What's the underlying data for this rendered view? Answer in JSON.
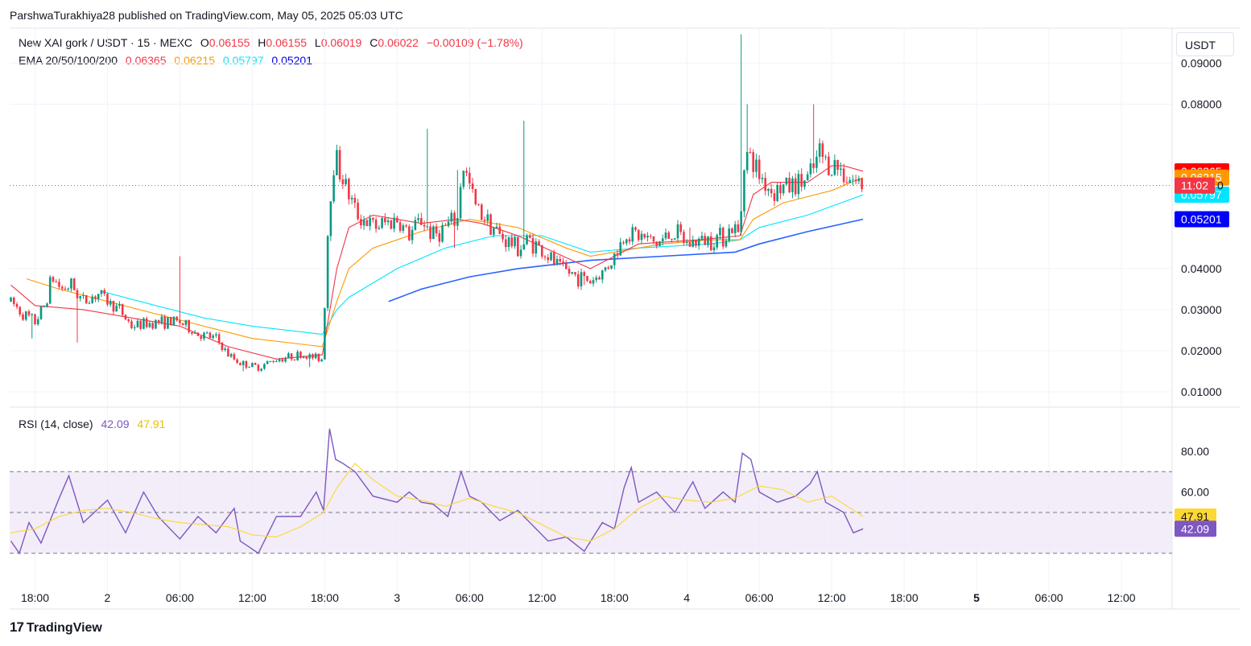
{
  "header": {
    "author": "ParshwaTurakhiya28",
    "published_text": "published on TradingView.com, May 05, 2025 05:03 UTC"
  },
  "legend": {
    "symbol": "New XAI gork / USDT · 15 · MEXC",
    "open_label": "O",
    "open": "0.06155",
    "high_label": "H",
    "high": "0.06155",
    "low_label": "L",
    "low": "0.06019",
    "close_label": "C",
    "close": "0.06022",
    "change": "−0.00109 (−1.78%)"
  },
  "ema_legend": {
    "label": "EMA 20/50/100/200",
    "v20": "0.06365",
    "v50": "0.06215",
    "v100": "0.05797",
    "v200": "0.05201"
  },
  "rsi_legend": {
    "label": "RSI (14, close)",
    "rsi": "42.09",
    "ma": "47.91"
  },
  "currency_button": "USDT",
  "footer": {
    "brand": "TradingView",
    "logo_glyph": "17"
  },
  "colors": {
    "up": "#089981",
    "down": "#f23645",
    "ema20": "#f23645",
    "ema50": "#ff9800",
    "ema100": "#00e5ff",
    "ema200": "#2962ff",
    "rsi": "#7e57c2",
    "rsi_ma": "#fdd835",
    "rsi_band": "#ede7f6"
  },
  "chart_data": [
    {
      "type": "candlestick",
      "title": "New XAI gork / USDT · 15 · MEXC",
      "y_ticks": [
        "0.09000",
        "0.08000",
        "0.04000",
        "0.03000",
        "0.02000",
        "0.01000"
      ],
      "ylim": [
        0.0065,
        0.0985
      ],
      "x_ticks": [
        "18:00",
        "2",
        "06:00",
        "12:00",
        "18:00",
        "3",
        "06:00",
        "12:00",
        "18:00",
        "4",
        "06:00",
        "12:00",
        "18:00",
        "5",
        "06:00",
        "12:00"
      ],
      "x_tick_hours": [
        0,
        6,
        12,
        18,
        24,
        30,
        36,
        42,
        48,
        54,
        60,
        66,
        72,
        78,
        84,
        90
      ],
      "x_range_hours": [
        -2.1,
        94.2
      ],
      "last_price": 0.0602,
      "countdown": "11:02",
      "countdown_suffix": "0",
      "price_badges": [
        {
          "value": "0.06365",
          "y": 0.06365,
          "color": "#ff0000"
        },
        {
          "value": "0.06215",
          "y": 0.06215,
          "color": "#ff9800"
        },
        {
          "value": "0.05797",
          "y": 0.05797,
          "color": "#00e5ff"
        },
        {
          "value": "0.05201",
          "y": 0.05201,
          "color": "#0000ff"
        }
      ],
      "price_path": [
        [
          -2.0,
          0.032
        ],
        [
          -1.0,
          0.029
        ],
        [
          0,
          0.027
        ],
        [
          0.8,
          0.031
        ],
        [
          1.4,
          0.038
        ],
        [
          2.2,
          0.035
        ],
        [
          3.0,
          0.036
        ],
        [
          4.0,
          0.032
        ],
        [
          5.2,
          0.034
        ],
        [
          6.0,
          0.032
        ],
        [
          7.0,
          0.03
        ],
        [
          8.0,
          0.026
        ],
        [
          10.0,
          0.027
        ],
        [
          12.0,
          0.027
        ],
        [
          13.5,
          0.024
        ],
        [
          15.0,
          0.023
        ],
        [
          16.0,
          0.019
        ],
        [
          17.0,
          0.017
        ],
        [
          18.5,
          0.016
        ],
        [
          20.0,
          0.018
        ],
        [
          22.0,
          0.019
        ],
        [
          23.8,
          0.018
        ],
        [
          24.3,
          0.052
        ],
        [
          24.8,
          0.068
        ],
        [
          25.5,
          0.062
        ],
        [
          26.5,
          0.054
        ],
        [
          28.0,
          0.05
        ],
        [
          30.0,
          0.052
        ],
        [
          31.0,
          0.048
        ],
        [
          32.0,
          0.052
        ],
        [
          33.0,
          0.048
        ],
        [
          34.0,
          0.05
        ],
        [
          35.0,
          0.052
        ],
        [
          35.4,
          0.066
        ],
        [
          36.5,
          0.055
        ],
        [
          37.5,
          0.052
        ],
        [
          38.5,
          0.048
        ],
        [
          40.0,
          0.045
        ],
        [
          41.0,
          0.047
        ],
        [
          42.5,
          0.043
        ],
        [
          43.5,
          0.04
        ],
        [
          45.0,
          0.038
        ],
        [
          46.0,
          0.037
        ],
        [
          47.0,
          0.039
        ],
        [
          48.0,
          0.043
        ],
        [
          49.0,
          0.049
        ],
        [
          50.0,
          0.048
        ],
        [
          51.5,
          0.046
        ],
        [
          53.0,
          0.049
        ],
        [
          54.0,
          0.046
        ],
        [
          55.5,
          0.047
        ],
        [
          57.0,
          0.048
        ],
        [
          57.8,
          0.05
        ],
        [
          58.4,
          0.048
        ],
        [
          58.7,
          0.068
        ],
        [
          59.2,
          0.067
        ],
        [
          60.0,
          0.063
        ],
        [
          61.0,
          0.059
        ],
        [
          62.5,
          0.06
        ],
        [
          63.5,
          0.061
        ],
        [
          64.2,
          0.062
        ],
        [
          65.0,
          0.068
        ],
        [
          65.5,
          0.066
        ],
        [
          66.3,
          0.065
        ],
        [
          67.2,
          0.063
        ],
        [
          68.0,
          0.061
        ],
        [
          68.6,
          0.0602
        ]
      ],
      "highs": [
        [
          11.9,
          0.043
        ],
        [
          32.4,
          0.074
        ],
        [
          40.4,
          0.076
        ],
        [
          58.4,
          0.097
        ],
        [
          58.9,
          0.08
        ],
        [
          64.4,
          0.08
        ],
        [
          54.3,
          0.05
        ],
        [
          35.0,
          0.064
        ]
      ],
      "lows": [
        [
          -0.2,
          0.023
        ],
        [
          3.6,
          0.022
        ],
        [
          17.2,
          0.015
        ],
        [
          22.7,
          0.016
        ],
        [
          45.5,
          0.036
        ],
        [
          34.8,
          0.045
        ]
      ],
      "ema20_path": [
        [
          -2.0,
          0.036
        ],
        [
          0,
          0.031
        ],
        [
          4.0,
          0.03
        ],
        [
          8.0,
          0.028
        ],
        [
          12.0,
          0.026
        ],
        [
          16.0,
          0.021
        ],
        [
          20.0,
          0.018
        ],
        [
          23.8,
          0.019
        ],
        [
          25.0,
          0.04
        ],
        [
          26.0,
          0.05
        ],
        [
          28.0,
          0.053
        ],
        [
          32.0,
          0.051
        ],
        [
          35.0,
          0.052
        ],
        [
          37.0,
          0.051
        ],
        [
          40.0,
          0.048
        ],
        [
          43.0,
          0.044
        ],
        [
          46.0,
          0.04
        ],
        [
          48.0,
          0.043
        ],
        [
          50.0,
          0.046
        ],
        [
          55.0,
          0.047
        ],
        [
          58.4,
          0.048
        ],
        [
          59.5,
          0.058
        ],
        [
          61.0,
          0.061
        ],
        [
          64.0,
          0.061
        ],
        [
          66.0,
          0.065
        ],
        [
          67.0,
          0.065
        ],
        [
          68.6,
          0.0637
        ]
      ],
      "ema50_path": [
        [
          -0.7,
          0.0375
        ],
        [
          2.0,
          0.035
        ],
        [
          6.0,
          0.032
        ],
        [
          10.0,
          0.029
        ],
        [
          14.0,
          0.026
        ],
        [
          18.0,
          0.023
        ],
        [
          23.8,
          0.021
        ],
        [
          25.0,
          0.032
        ],
        [
          26.0,
          0.04
        ],
        [
          28.0,
          0.045
        ],
        [
          32.0,
          0.049
        ],
        [
          36.0,
          0.052
        ],
        [
          40.0,
          0.05
        ],
        [
          44.0,
          0.045
        ],
        [
          46.0,
          0.043
        ],
        [
          48.0,
          0.044
        ],
        [
          52.0,
          0.046
        ],
        [
          56.0,
          0.047
        ],
        [
          58.4,
          0.047
        ],
        [
          59.5,
          0.052
        ],
        [
          62.0,
          0.056
        ],
        [
          66.0,
          0.059
        ],
        [
          68.6,
          0.06215
        ]
      ],
      "ema100_path": [
        [
          5.5,
          0.0345
        ],
        [
          10.0,
          0.031
        ],
        [
          14.0,
          0.028
        ],
        [
          18.0,
          0.026
        ],
        [
          23.8,
          0.024
        ],
        [
          25.0,
          0.03
        ],
        [
          26.0,
          0.033
        ],
        [
          30.0,
          0.04
        ],
        [
          34.0,
          0.045
        ],
        [
          38.0,
          0.048
        ],
        [
          42.0,
          0.048
        ],
        [
          46.0,
          0.044
        ],
        [
          50.0,
          0.045
        ],
        [
          56.0,
          0.046
        ],
        [
          58.4,
          0.047
        ],
        [
          60.0,
          0.05
        ],
        [
          64.0,
          0.053
        ],
        [
          68.6,
          0.05797
        ]
      ],
      "ema200_path": [
        [
          29.3,
          0.032
        ],
        [
          32.0,
          0.035
        ],
        [
          36.0,
          0.038
        ],
        [
          40.0,
          0.04
        ],
        [
          46.0,
          0.042
        ],
        [
          52.0,
          0.043
        ],
        [
          58.0,
          0.044
        ],
        [
          60.0,
          0.046
        ],
        [
          64.0,
          0.049
        ],
        [
          68.6,
          0.05201
        ]
      ]
    },
    {
      "type": "line",
      "title": "RSI (14, close)",
      "y_ticks": [
        "80.00",
        "60.00"
      ],
      "ylim": [
        3.1,
        101.2
      ],
      "band": [
        30,
        70
      ],
      "midline": 50,
      "series": [
        {
          "name": "RSI",
          "color": "#7e57c2",
          "points": [
            [
              -2.0,
              36
            ],
            [
              -1.3,
              30
            ],
            [
              -0.5,
              45
            ],
            [
              0.5,
              35
            ],
            [
              2.0,
              57
            ],
            [
              2.8,
              68
            ],
            [
              4.0,
              45
            ],
            [
              6.0,
              56
            ],
            [
              7.5,
              40
            ],
            [
              9.0,
              60
            ],
            [
              10.2,
              48
            ],
            [
              12.0,
              37
            ],
            [
              13.5,
              48
            ],
            [
              15.0,
              40
            ],
            [
              16.5,
              52
            ],
            [
              17.0,
              36
            ],
            [
              18.5,
              30
            ],
            [
              20.0,
              48
            ],
            [
              22.0,
              48
            ],
            [
              23.3,
              60
            ],
            [
              23.9,
              51
            ],
            [
              24.4,
              91
            ],
            [
              24.9,
              76
            ],
            [
              25.5,
              74
            ],
            [
              26.5,
              70
            ],
            [
              28.0,
              58
            ],
            [
              30.0,
              55
            ],
            [
              31.0,
              60
            ],
            [
              32.0,
              55
            ],
            [
              33.0,
              54
            ],
            [
              34.2,
              48
            ],
            [
              35.3,
              70
            ],
            [
              36.0,
              58
            ],
            [
              37.0,
              55
            ],
            [
              38.5,
              46
            ],
            [
              40.0,
              51
            ],
            [
              42.5,
              36
            ],
            [
              44.0,
              38
            ],
            [
              45.5,
              31
            ],
            [
              47.0,
              45
            ],
            [
              48.0,
              42
            ],
            [
              48.8,
              62
            ],
            [
              49.4,
              72
            ],
            [
              50.0,
              55
            ],
            [
              51.5,
              60
            ],
            [
              53.0,
              50
            ],
            [
              54.5,
              65
            ],
            [
              55.5,
              52
            ],
            [
              57.0,
              60
            ],
            [
              58.0,
              55
            ],
            [
              58.6,
              79
            ],
            [
              59.3,
              76
            ],
            [
              60.0,
              60
            ],
            [
              61.5,
              55
            ],
            [
              63.0,
              58
            ],
            [
              64.2,
              64
            ],
            [
              64.8,
              70
            ],
            [
              65.5,
              55
            ],
            [
              67.0,
              50
            ],
            [
              67.8,
              40
            ],
            [
              68.6,
              42
            ]
          ]
        },
        {
          "name": "RSI-based MA",
          "color": "#fdd835",
          "points": [
            [
              -2.0,
              40
            ],
            [
              0,
              42
            ],
            [
              2.0,
              48
            ],
            [
              4.0,
              51
            ],
            [
              6.0,
              52
            ],
            [
              8.0,
              50
            ],
            [
              10.0,
              47
            ],
            [
              12.0,
              45
            ],
            [
              14.0,
              44
            ],
            [
              16.0,
              43
            ],
            [
              18.0,
              39
            ],
            [
              20.0,
              38
            ],
            [
              22.0,
              43
            ],
            [
              23.9,
              50
            ],
            [
              25.0,
              62
            ],
            [
              26.5,
              74
            ],
            [
              28.0,
              66
            ],
            [
              30.0,
              58
            ],
            [
              32.0,
              56
            ],
            [
              34.0,
              53
            ],
            [
              36.0,
              57
            ],
            [
              38.0,
              53
            ],
            [
              40.0,
              50
            ],
            [
              42.0,
              44
            ],
            [
              44.0,
              38
            ],
            [
              46.0,
              36
            ],
            [
              48.0,
              42
            ],
            [
              50.0,
              52
            ],
            [
              52.0,
              58
            ],
            [
              54.0,
              56
            ],
            [
              56.0,
              55
            ],
            [
              58.0,
              57
            ],
            [
              60.0,
              63
            ],
            [
              62.0,
              61
            ],
            [
              64.0,
              55
            ],
            [
              66.0,
              58
            ],
            [
              68.6,
              48
            ]
          ]
        }
      ]
    }
  ]
}
